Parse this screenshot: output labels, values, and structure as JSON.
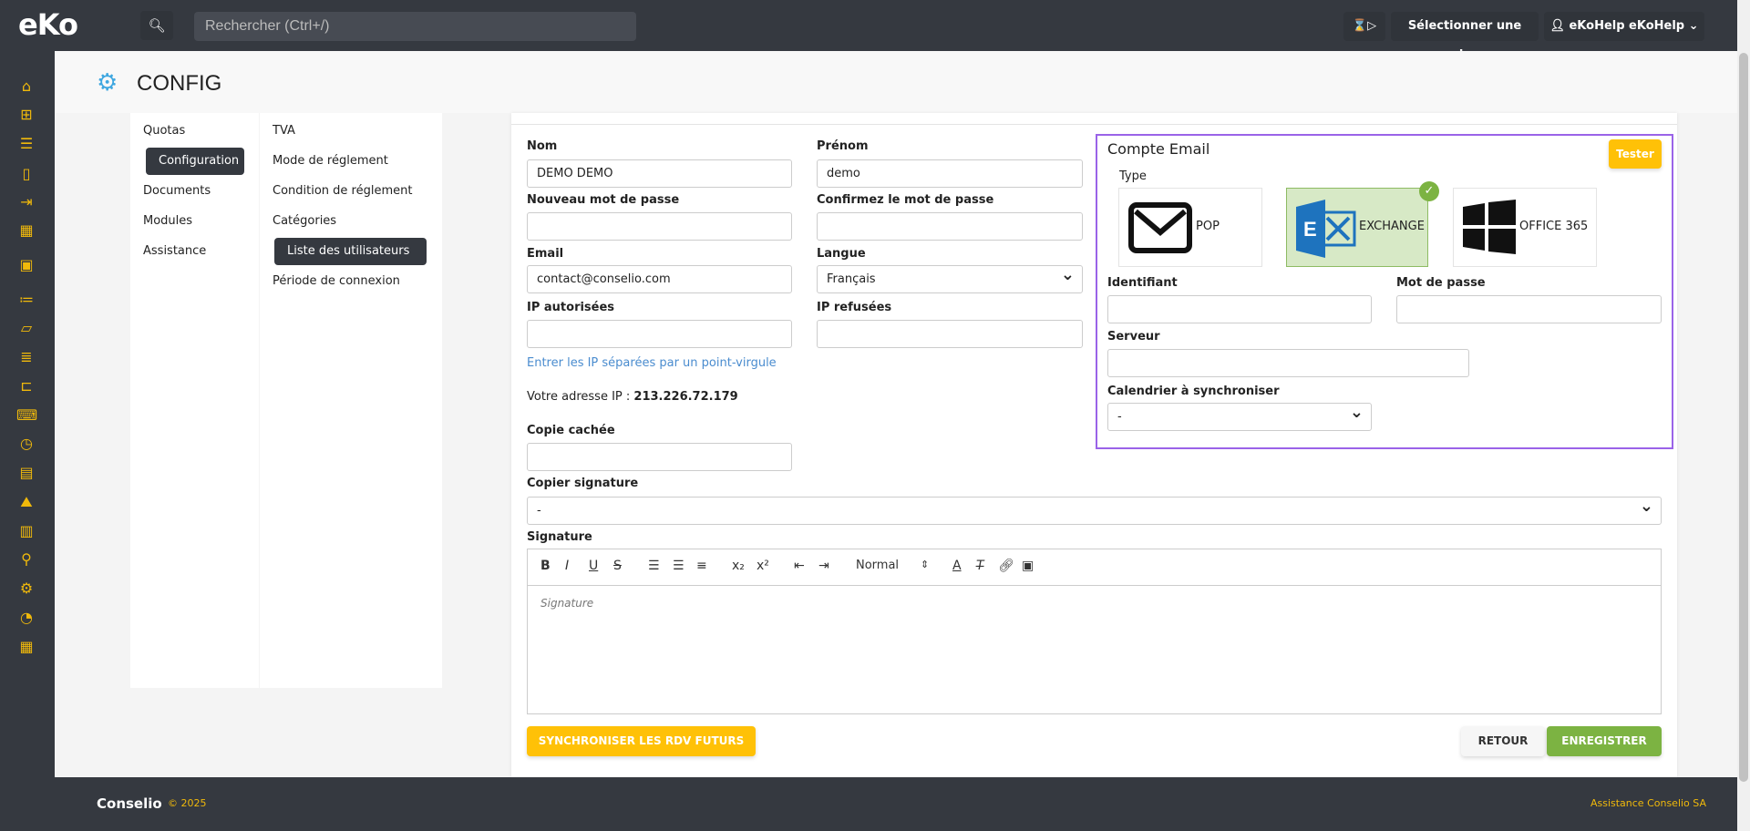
{
  "topbar": {
    "logo": "eKo",
    "search_placeholder": "Rechercher (Ctrl+/)",
    "timer_icon": "⌛▷",
    "select_register": "Sélectionner une caisse",
    "user": "eKoHelp eKoHelp"
  },
  "sidebar": {
    "icons": [
      "home",
      "plus-square",
      "receipt",
      "file",
      "file-export",
      "calendar",
      "calendar-edit",
      "checklist",
      "folder-open",
      "scanner",
      "sitemap",
      "cash-register",
      "stopwatch",
      "contact",
      "map",
      "bar-chart",
      "search",
      "gears",
      "pie-chart",
      "calculator"
    ]
  },
  "header": {
    "title": "CONFIG"
  },
  "nav1": [
    "Quotas",
    "Configuration",
    "Documents",
    "Modules",
    "Assistance"
  ],
  "nav2": [
    "TVA",
    "Mode de réglement",
    "Condition de réglement",
    "Catégories",
    "Liste des utilisateurs",
    "Période de connexion"
  ],
  "form": {
    "nom_label": "Nom",
    "nom": "DEMO DEMO",
    "prenom_label": "Prénom",
    "prenom": "demo",
    "pwd_label": "Nouveau mot de passe",
    "pwd_confirm_label": "Confirmez le mot de passe",
    "email_label": "Email",
    "email": "contact@conselio.com",
    "langue_label": "Langue",
    "langue": "Français",
    "ip_ok_label": "IP autorisées",
    "ip_ko_label": "IP refusées",
    "ip_hint": "Entrer les IP séparées par un point-virgule",
    "ip_text": "Votre adresse IP :",
    "ip_value": "213.226.72.179",
    "bcc_label": "Copie cachée",
    "copy_sig_label": "Copier signature",
    "copy_sig": "-",
    "signature_label": "Signature",
    "signature_placeholder": "Signature",
    "format": "Normal"
  },
  "email_account": {
    "title": "Compte Email",
    "test": "Tester",
    "type_label": "Type",
    "types": [
      "POP",
      "EXCHANGE",
      "OFFICE 365"
    ],
    "selected": "EXCHANGE",
    "id_label": "Identifiant",
    "pwd_label": "Mot de passe",
    "server_label": "Serveur",
    "calendar_label": "Calendrier à synchroniser",
    "calendar": "-"
  },
  "actions": {
    "sync": "SYNCHRONISER LES RDV FUTURS",
    "back": "RETOUR",
    "save": "ENREGISTRER"
  },
  "footer": {
    "brand": "Conselio",
    "year": "© 2025",
    "support": "Assistance Conselio SA"
  },
  "colors": {
    "accent": "#ffc107",
    "save": "#7cb342",
    "dark": "#353940",
    "highlight": "#9a63e8"
  }
}
